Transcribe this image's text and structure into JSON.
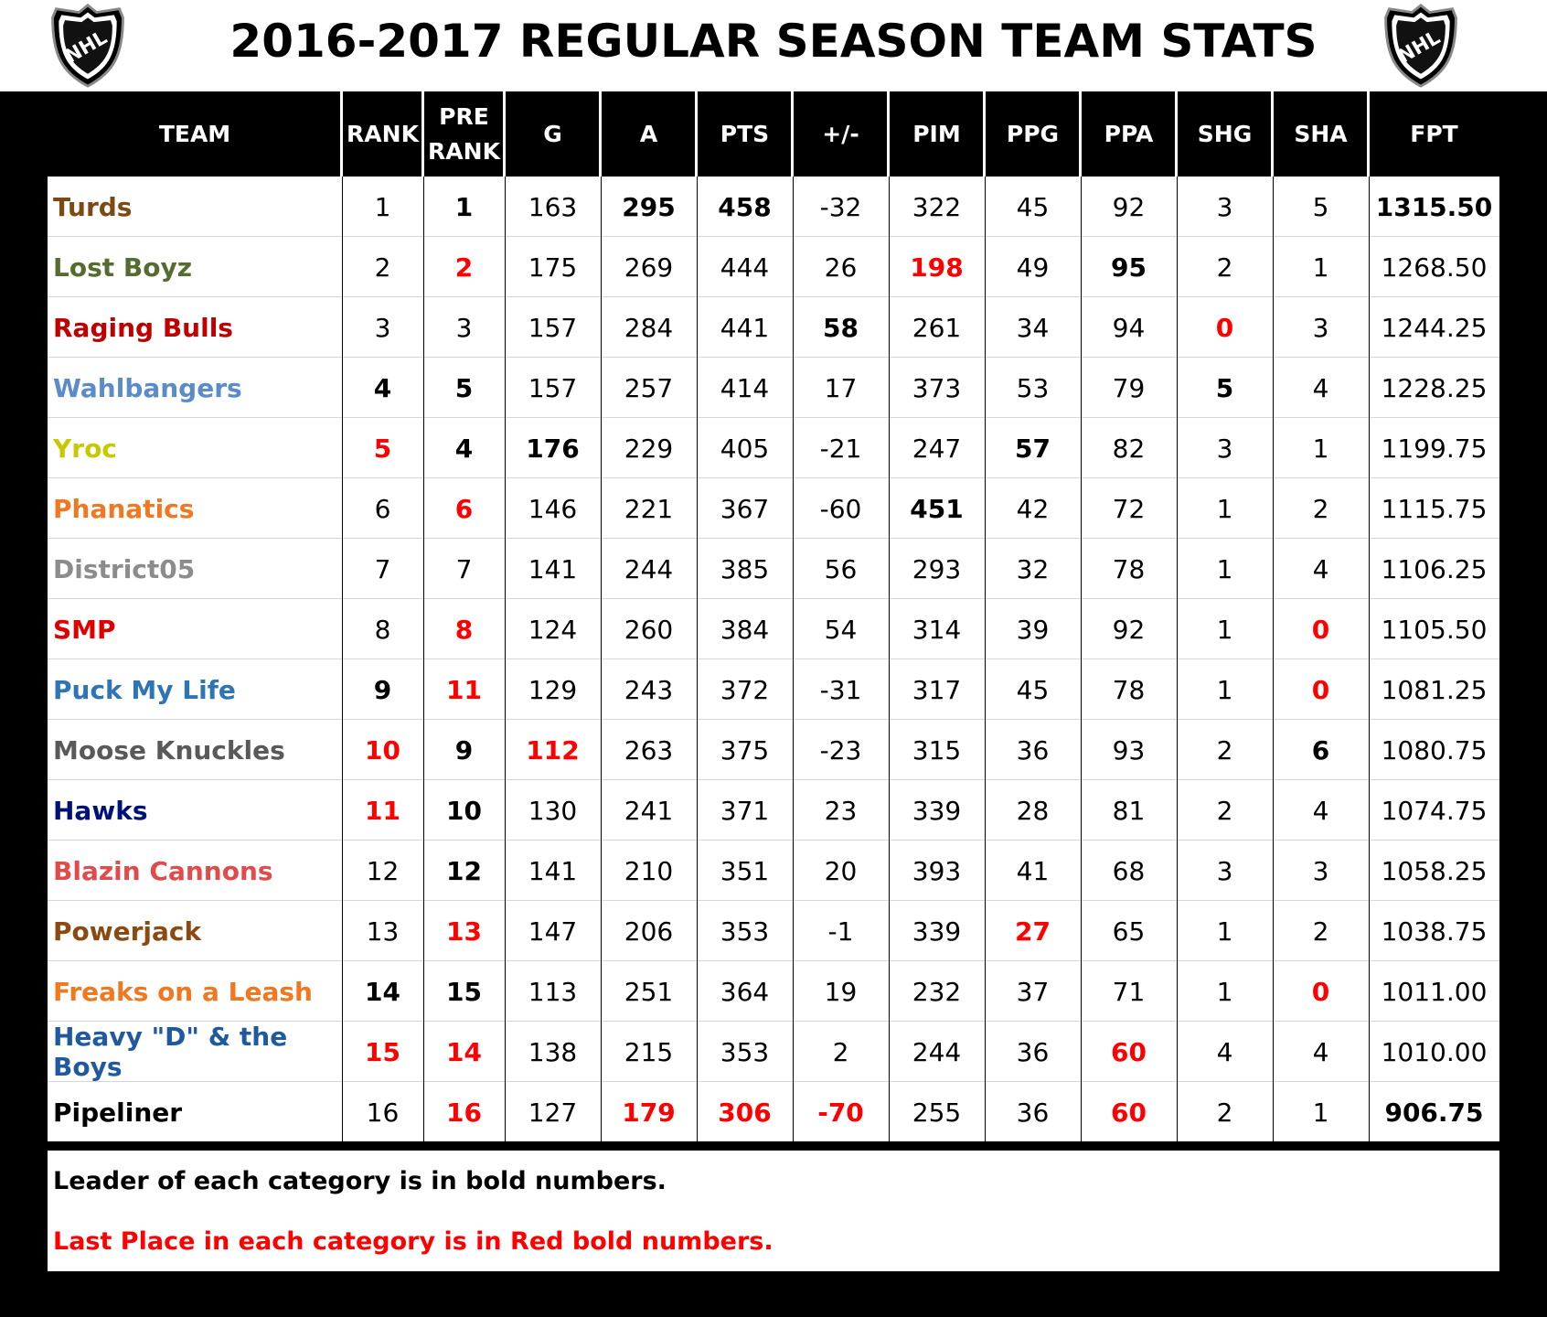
{
  "title": "2016-2017 REGULAR SEASON TEAM STATS",
  "logo_text": "NHL",
  "columns": [
    "TEAM",
    "RANK",
    "PRE\nRANK",
    "G",
    "A",
    "PTS",
    "+/-",
    "PIM",
    "PPG",
    "PPA",
    "SHG",
    "SHA",
    "FPT"
  ],
  "rows": [
    {
      "team": "Turds",
      "team_color": "#7b4a12",
      "values": [
        "1",
        "1",
        "163",
        "295",
        "458",
        "-32",
        "322",
        "45",
        "92",
        "3",
        "5",
        "1315.50"
      ],
      "styles": [
        "",
        "b",
        "",
        "b",
        "b",
        "",
        "",
        "",
        "",
        "",
        "",
        "b"
      ]
    },
    {
      "team": "Lost Boyz",
      "team_color": "#556b2f",
      "values": [
        "2",
        "2",
        "175",
        "269",
        "444",
        "26",
        "198",
        "49",
        "95",
        "2",
        "1",
        "1268.50"
      ],
      "styles": [
        "",
        "r",
        "",
        "",
        "",
        "",
        "r",
        "",
        "b",
        "",
        "",
        ""
      ]
    },
    {
      "team": "Raging Bulls",
      "team_color": "#c00000",
      "values": [
        "3",
        "3",
        "157",
        "284",
        "441",
        "58",
        "261",
        "34",
        "94",
        "0",
        "3",
        "1244.25"
      ],
      "styles": [
        "",
        "",
        "",
        "",
        "",
        "b",
        "",
        "",
        "",
        "r",
        "",
        ""
      ]
    },
    {
      "team": "Wahlbangers",
      "team_color": "#5b8bc9",
      "values": [
        "4",
        "5",
        "157",
        "257",
        "414",
        "17",
        "373",
        "53",
        "79",
        "5",
        "4",
        "1228.25"
      ],
      "styles": [
        "b",
        "b",
        "",
        "",
        "",
        "",
        "",
        "",
        "",
        "b",
        "",
        ""
      ]
    },
    {
      "team": "Yroc",
      "team_color": "#c8c800",
      "values": [
        "5",
        "4",
        "176",
        "229",
        "405",
        "-21",
        "247",
        "57",
        "82",
        "3",
        "1",
        "1199.75"
      ],
      "styles": [
        "r",
        "b",
        "b",
        "",
        "",
        "",
        "",
        "b",
        "",
        "",
        "",
        ""
      ]
    },
    {
      "team": "Phanatics",
      "team_color": "#f07820",
      "values": [
        "6",
        "6",
        "146",
        "221",
        "367",
        "-60",
        "451",
        "42",
        "72",
        "1",
        "2",
        "1115.75"
      ],
      "styles": [
        "",
        "r",
        "",
        "",
        "",
        "",
        "b",
        "",
        "",
        "",
        "",
        ""
      ]
    },
    {
      "team": "District05",
      "team_color": "#8c8c8c",
      "values": [
        "7",
        "7",
        "141",
        "244",
        "385",
        "56",
        "293",
        "32",
        "78",
        "1",
        "4",
        "1106.25"
      ],
      "styles": [
        "",
        "",
        "",
        "",
        "",
        "",
        "",
        "",
        "",
        "",
        "",
        ""
      ]
    },
    {
      "team": "SMP",
      "team_color": "#e00000",
      "values": [
        "8",
        "8",
        "124",
        "260",
        "384",
        "54",
        "314",
        "39",
        "92",
        "1",
        "0",
        "1105.50"
      ],
      "styles": [
        "",
        "r",
        "",
        "",
        "",
        "",
        "",
        "",
        "",
        "",
        "r",
        ""
      ]
    },
    {
      "team": "Puck My Life",
      "team_color": "#2e75b6",
      "values": [
        "9",
        "11",
        "129",
        "243",
        "372",
        "-31",
        "317",
        "45",
        "78",
        "1",
        "0",
        "1081.25"
      ],
      "styles": [
        "b",
        "r",
        "",
        "",
        "",
        "",
        "",
        "",
        "",
        "",
        "r",
        ""
      ]
    },
    {
      "team": "Moose Knuckles",
      "team_color": "#595959",
      "values": [
        "10",
        "9",
        "112",
        "263",
        "375",
        "-23",
        "315",
        "36",
        "93",
        "2",
        "6",
        "1080.75"
      ],
      "styles": [
        "r",
        "b",
        "r",
        "",
        "",
        "",
        "",
        "",
        "",
        "",
        "b",
        ""
      ]
    },
    {
      "team": "Hawks",
      "team_color": "#00127a",
      "values": [
        "11",
        "10",
        "130",
        "241",
        "371",
        "23",
        "339",
        "28",
        "81",
        "2",
        "4",
        "1074.75"
      ],
      "styles": [
        "r",
        "b",
        "",
        "",
        "",
        "",
        "",
        "",
        "",
        "",
        "",
        ""
      ]
    },
    {
      "team": "Blazin Cannons",
      "team_color": "#e04b4b",
      "values": [
        "12",
        "12",
        "141",
        "210",
        "351",
        "20",
        "393",
        "41",
        "68",
        "3",
        "3",
        "1058.25"
      ],
      "styles": [
        "",
        "b",
        "",
        "",
        "",
        "",
        "",
        "",
        "",
        "",
        "",
        ""
      ]
    },
    {
      "team": "Powerjack",
      "team_color": "#8b4a12",
      "values": [
        "13",
        "13",
        "147",
        "206",
        "353",
        "-1",
        "339",
        "27",
        "65",
        "1",
        "2",
        "1038.75"
      ],
      "styles": [
        "",
        "r",
        "",
        "",
        "",
        "",
        "",
        "r",
        "",
        "",
        "",
        ""
      ]
    },
    {
      "team": "Freaks on a Leash",
      "team_color": "#f07820",
      "values": [
        "14",
        "15",
        "113",
        "251",
        "364",
        "19",
        "232",
        "37",
        "71",
        "1",
        "0",
        "1011.00"
      ],
      "styles": [
        "b",
        "b",
        "",
        "",
        "",
        "",
        "",
        "",
        "",
        "",
        "r",
        ""
      ]
    },
    {
      "team": "Heavy \"D\" & the Boys",
      "team_color": "#1f5aa0",
      "values": [
        "15",
        "14",
        "138",
        "215",
        "353",
        "2",
        "244",
        "36",
        "60",
        "4",
        "4",
        "1010.00"
      ],
      "styles": [
        "r",
        "r",
        "",
        "",
        "",
        "",
        "",
        "",
        "r",
        "",
        "",
        ""
      ]
    },
    {
      "team": "Pipeliner",
      "team_color": "#000000",
      "values": [
        "16",
        "16",
        "127",
        "179",
        "306",
        "-70",
        "255",
        "36",
        "60",
        "2",
        "1",
        "906.75"
      ],
      "styles": [
        "",
        "r",
        "",
        "r",
        "r",
        "r",
        "",
        "",
        "r",
        "",
        "",
        "b"
      ]
    }
  ],
  "notes": {
    "bold": "Leader of each category is in bold numbers.",
    "red": "Last Place in each category is in Red bold numbers."
  },
  "colors": {
    "header_bg": "#000000",
    "last_place": "#ff0000"
  }
}
